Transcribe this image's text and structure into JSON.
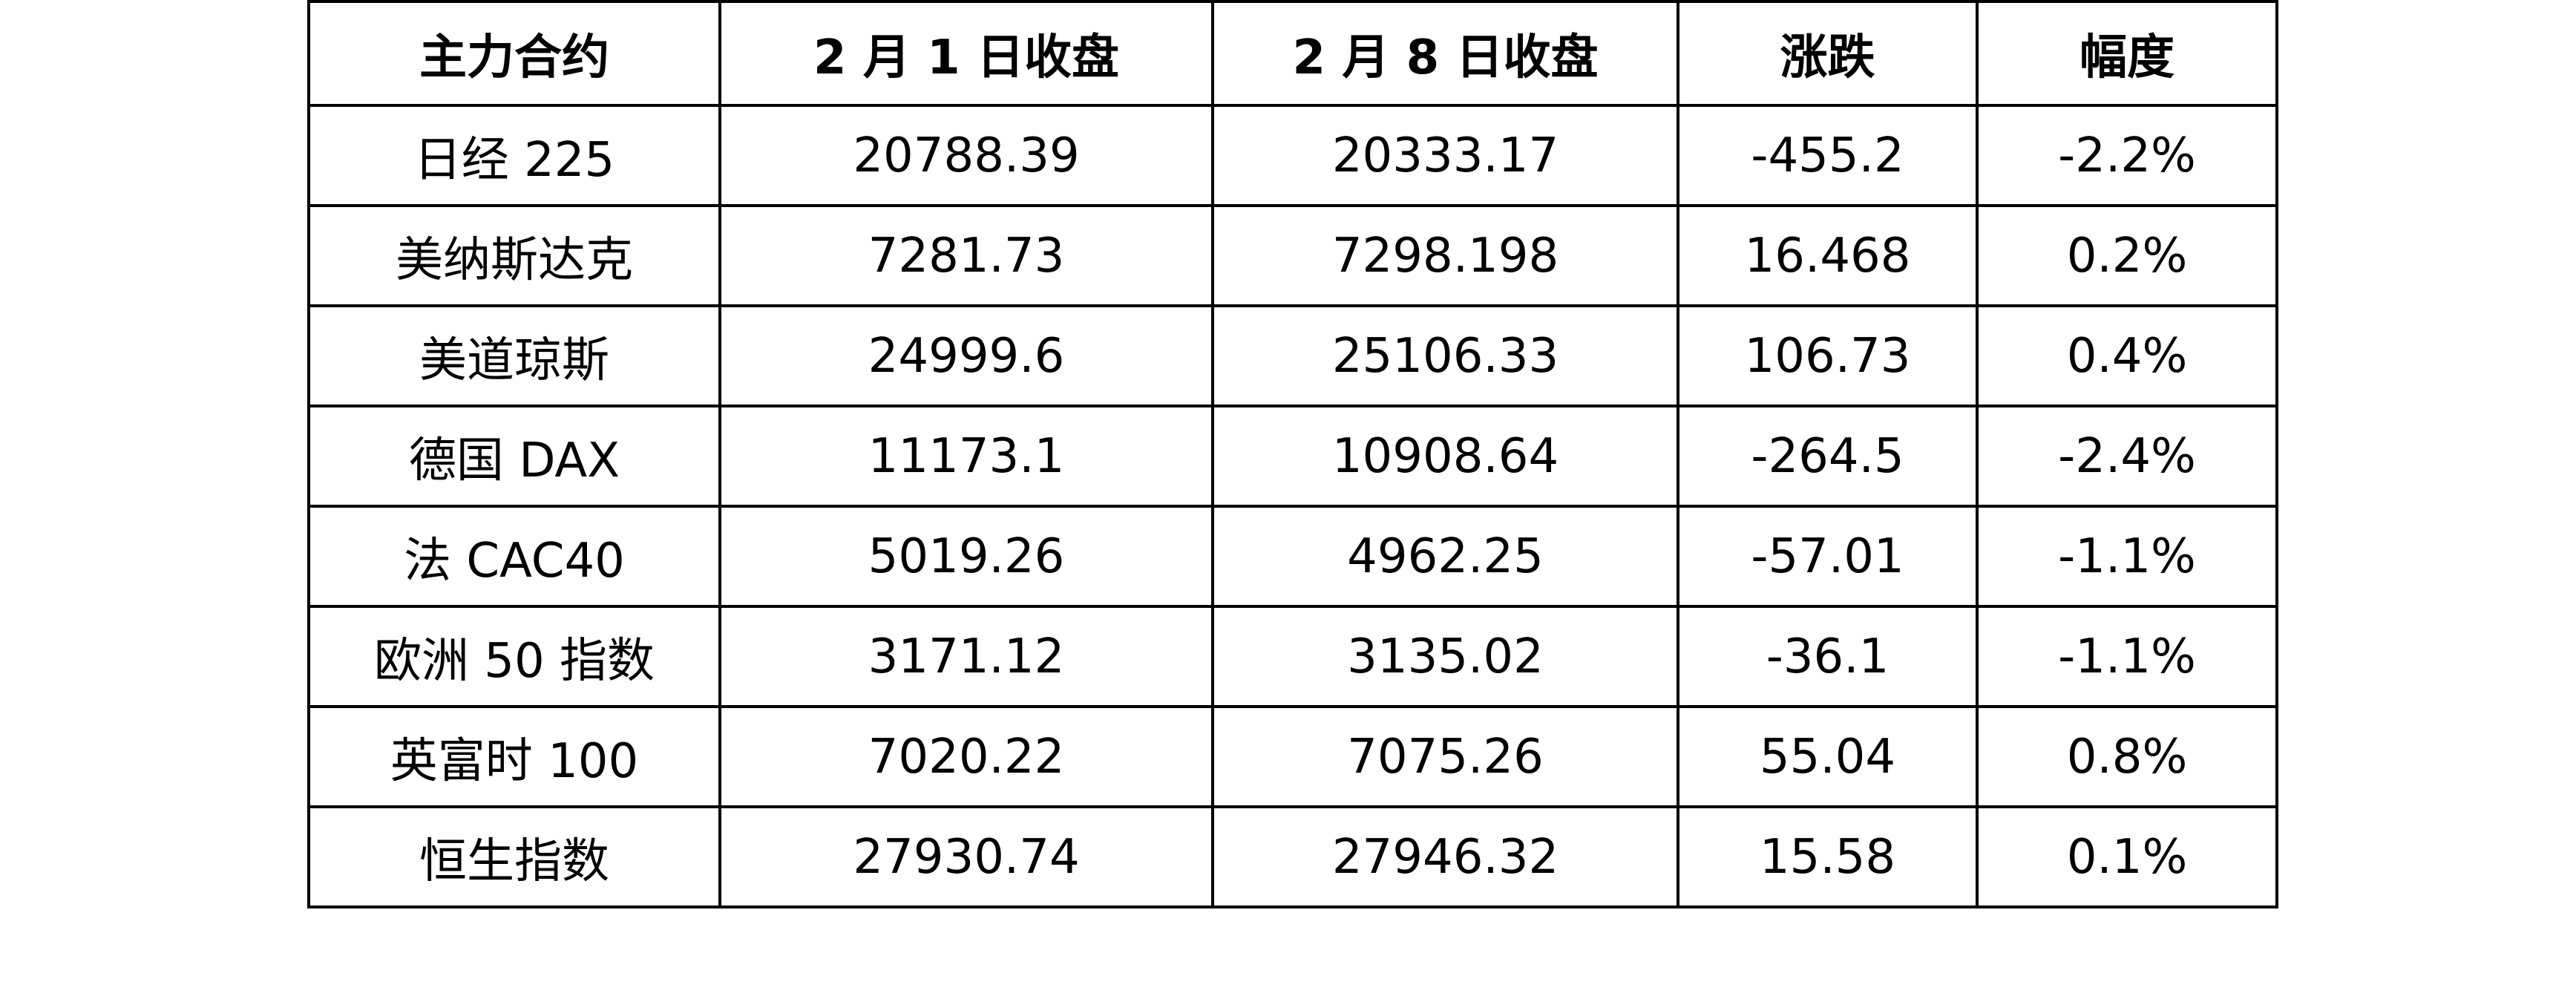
{
  "table": {
    "headers": [
      "主力合约",
      "2 月 1 日收盘",
      "2 月 8 日收盘",
      "涨跌",
      "幅度"
    ],
    "rows": [
      [
        "日经 225",
        "20788.39",
        "20333.17",
        "-455.2",
        "-2.2%"
      ],
      [
        "美纳斯达克",
        "7281.73",
        "7298.198",
        "16.468",
        "0.2%"
      ],
      [
        "美道琼斯",
        "24999.6",
        "25106.33",
        "106.73",
        "0.4%"
      ],
      [
        "德国 DAX",
        "11173.1",
        "10908.64",
        "-264.5",
        "-2.4%"
      ],
      [
        "法 CAC40",
        "5019.26",
        "4962.25",
        "-57.01",
        "-1.1%"
      ],
      [
        "欧洲 50 指数",
        "3171.12",
        "3135.02",
        "-36.1",
        "-1.1%"
      ],
      [
        "英富时 100",
        "7020.22",
        "7075.26",
        "55.04",
        "0.8%"
      ],
      [
        "恒生指数",
        "27930.74",
        "27946.32",
        "15.58",
        "0.1%"
      ]
    ]
  }
}
